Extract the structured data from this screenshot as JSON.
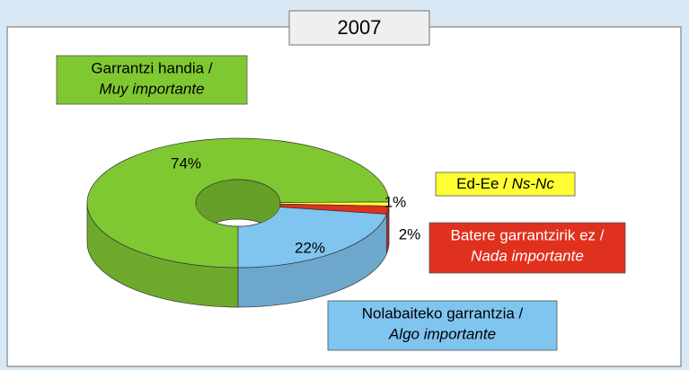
{
  "chart_data": {
    "type": "pie",
    "title": "2007",
    "categories": [
      [
        "Garrantzi handia /",
        "Muy importante"
      ],
      [
        "Ed-Ee /",
        "Ns-Nc"
      ],
      [
        "Batere garrantzirik ez /",
        "Nada importante"
      ],
      [
        "Nolabaiteko garrantzia /",
        "Algo importante"
      ]
    ],
    "values": [
      74,
      1,
      2,
      22
    ],
    "value_labels": [
      "74%",
      "1%",
      "2%",
      "22%"
    ],
    "colors": [
      "#80c832",
      "#ffff33",
      "#e0301e",
      "#80c4f0"
    ]
  }
}
